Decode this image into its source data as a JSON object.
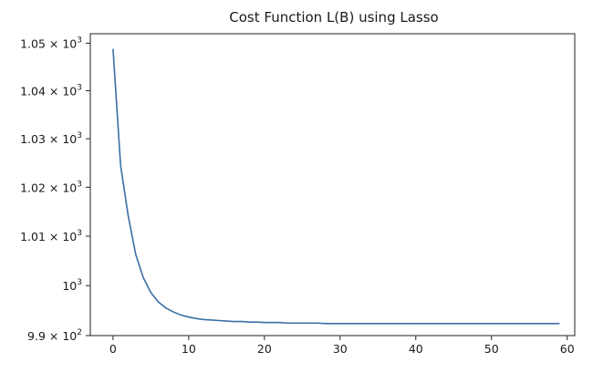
{
  "chart_data": {
    "type": "line",
    "title": "Cost Function L(B) using Lasso",
    "xlabel": "",
    "ylabel": "",
    "y_scale": "log",
    "xlim": [
      -3,
      61
    ],
    "ylim": [
      990,
      1052
    ],
    "grid": false,
    "x_ticks": [
      {
        "value": 0,
        "label": "0"
      },
      {
        "value": 10,
        "label": "10"
      },
      {
        "value": 20,
        "label": "20"
      },
      {
        "value": 30,
        "label": "30"
      },
      {
        "value": 40,
        "label": "40"
      },
      {
        "value": 50,
        "label": "50"
      },
      {
        "value": 60,
        "label": "60"
      }
    ],
    "y_ticks": [
      {
        "value": 1050,
        "mantissa": "1.05 × 10",
        "exponent": "3"
      },
      {
        "value": 1040,
        "mantissa": "1.04 × 10",
        "exponent": "3"
      },
      {
        "value": 1030,
        "mantissa": "1.03 × 10",
        "exponent": "3"
      },
      {
        "value": 1020,
        "mantissa": "1.02 × 10",
        "exponent": "3"
      },
      {
        "value": 1010,
        "mantissa": "1.01 × 10",
        "exponent": "3"
      },
      {
        "value": 1000,
        "mantissa": "10",
        "exponent": "3"
      },
      {
        "value": 990,
        "mantissa": "9.9 × 10",
        "exponent": "2"
      }
    ],
    "series": [
      {
        "color": "#3b6ea5",
        "x": [
          0,
          1,
          2,
          3,
          4,
          5,
          6,
          7,
          8,
          9,
          10,
          11,
          12,
          13,
          14,
          15,
          16,
          17,
          18,
          19,
          20,
          21,
          22,
          23,
          24,
          25,
          26,
          27,
          28,
          29,
          30,
          31,
          32,
          33,
          34,
          35,
          36,
          37,
          38,
          39,
          40,
          41,
          42,
          43,
          44,
          45,
          46,
          47,
          48,
          49,
          50,
          51,
          52,
          53,
          54,
          55,
          56,
          57,
          58,
          59
        ],
        "y": [
          1048.8,
          1024.5,
          1014.2,
          1006.3,
          1001.6,
          998.6,
          996.7,
          995.5,
          994.7,
          994.1,
          993.7,
          993.4,
          993.2,
          993.1,
          993.0,
          992.9,
          992.8,
          992.8,
          992.7,
          992.7,
          992.6,
          992.6,
          992.6,
          992.5,
          992.5,
          992.5,
          992.5,
          992.5,
          992.4,
          992.4,
          992.4,
          992.4,
          992.4,
          992.4,
          992.4,
          992.4,
          992.4,
          992.4,
          992.4,
          992.4,
          992.4,
          992.4,
          992.4,
          992.4,
          992.4,
          992.4,
          992.4,
          992.4,
          992.4,
          992.4,
          992.4,
          992.4,
          992.4,
          992.4,
          992.4,
          992.4,
          992.4,
          992.4,
          992.4,
          992.4
        ]
      }
    ]
  }
}
